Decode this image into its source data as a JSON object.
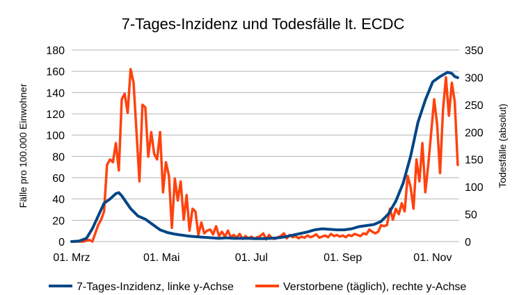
{
  "chart_data": {
    "type": "line",
    "title": "7-Tages-Inzidenz und Todesfälle lt. ECDC",
    "ylabel": "Fälle pro 100.000 Einwohner",
    "y2label": "Todesfälle (absolut)",
    "ylim": [
      0,
      180
    ],
    "y2lim": [
      0,
      350
    ],
    "yticks": [
      "0",
      "20",
      "40",
      "60",
      "80",
      "100",
      "120",
      "140",
      "160",
      "180"
    ],
    "y2ticks": [
      "0",
      "50",
      "100",
      "150",
      "200",
      "250",
      "300",
      "350"
    ],
    "xtick_labels": [
      "01. Mrz",
      "01. Mai",
      "01. Jul",
      "01. Sep",
      "01. Nov"
    ],
    "xtick_days": [
      0,
      61,
      122,
      184,
      245
    ],
    "x_unit": "days since 01. Mrz",
    "grid": true,
    "legend_position": "bottom",
    "series": [
      {
        "name": "7-Tages-Inzidenz, linke y-Achse",
        "axis": "left",
        "color": "#004586",
        "x": [
          0,
          5,
          10,
          14,
          18,
          22,
          26,
          30,
          32,
          34,
          37,
          40,
          45,
          50,
          55,
          60,
          65,
          70,
          75,
          80,
          85,
          90,
          95,
          100,
          105,
          110,
          115,
          120,
          125,
          130,
          135,
          140,
          145,
          150,
          155,
          160,
          165,
          170,
          175,
          180,
          185,
          190,
          195,
          200,
          205,
          210,
          215,
          220,
          225,
          230,
          235,
          240,
          245,
          250,
          255,
          258,
          260,
          262
        ],
        "y": [
          0,
          0.5,
          3,
          12,
          24,
          36,
          40,
          45,
          46,
          43,
          37,
          31,
          24,
          21,
          16,
          11,
          8.5,
          7,
          6,
          5,
          4.5,
          4,
          3.5,
          3,
          3.5,
          3,
          3,
          3,
          2.8,
          2.8,
          3,
          3.5,
          4.5,
          6,
          7.5,
          9,
          11,
          12,
          11.5,
          11,
          11,
          12,
          14,
          15,
          16,
          19,
          26,
          38,
          55,
          80,
          112,
          133,
          150,
          155,
          159,
          158,
          155,
          154
        ]
      },
      {
        "name": "Verstorbene (täglich), rechte y-Achse",
        "axis": "right",
        "color": "#ff420e",
        "x": [
          0,
          8,
          12,
          14,
          16,
          18,
          20,
          22,
          24,
          26,
          28,
          30,
          32,
          34,
          36,
          38,
          40,
          42,
          44,
          46,
          48,
          50,
          52,
          54,
          56,
          58,
          60,
          62,
          64,
          66,
          68,
          70,
          72,
          74,
          76,
          78,
          80,
          82,
          84,
          86,
          88,
          90,
          92,
          94,
          96,
          98,
          100,
          102,
          104,
          106,
          108,
          110,
          112,
          114,
          116,
          118,
          120,
          122,
          124,
          126,
          128,
          130,
          132,
          134,
          136,
          138,
          140,
          142,
          144,
          146,
          148,
          150,
          152,
          154,
          156,
          158,
          160,
          162,
          164,
          166,
          168,
          170,
          172,
          174,
          176,
          178,
          180,
          182,
          184,
          186,
          188,
          190,
          192,
          194,
          196,
          198,
          200,
          202,
          204,
          206,
          208,
          210,
          212,
          214,
          216,
          218,
          220,
          222,
          224,
          226,
          228,
          230,
          232,
          234,
          236,
          238,
          240,
          242,
          244,
          246,
          248,
          250,
          252,
          254,
          256,
          258,
          260,
          262
        ],
        "y": [
          0,
          0,
          3,
          0,
          15,
          30,
          40,
          55,
          140,
          150,
          145,
          180,
          130,
          260,
          270,
          235,
          315,
          290,
          200,
          110,
          250,
          245,
          155,
          200,
          160,
          150,
          200,
          90,
          145,
          120,
          25,
          115,
          75,
          110,
          40,
          85,
          20,
          60,
          55,
          12,
          35,
          15,
          20,
          22,
          13,
          28,
          10,
          18,
          9,
          20,
          8,
          12,
          7,
          14,
          5,
          10,
          6,
          9,
          5,
          8,
          10,
          15,
          4,
          12,
          6,
          5,
          8,
          10,
          15,
          6,
          12,
          8,
          10,
          6,
          9,
          7,
          11,
          8,
          10,
          13,
          7,
          9,
          11,
          8,
          14,
          10,
          12,
          9,
          11,
          8,
          12,
          10,
          14,
          12,
          10,
          15,
          13,
          22,
          18,
          15,
          18,
          30,
          28,
          30,
          60,
          40,
          60,
          50,
          70,
          55,
          120,
          100,
          60,
          150,
          110,
          180,
          90,
          140,
          200,
          260,
          215,
          125,
          240,
          300,
          230,
          290,
          255,
          140
        ]
      }
    ]
  }
}
